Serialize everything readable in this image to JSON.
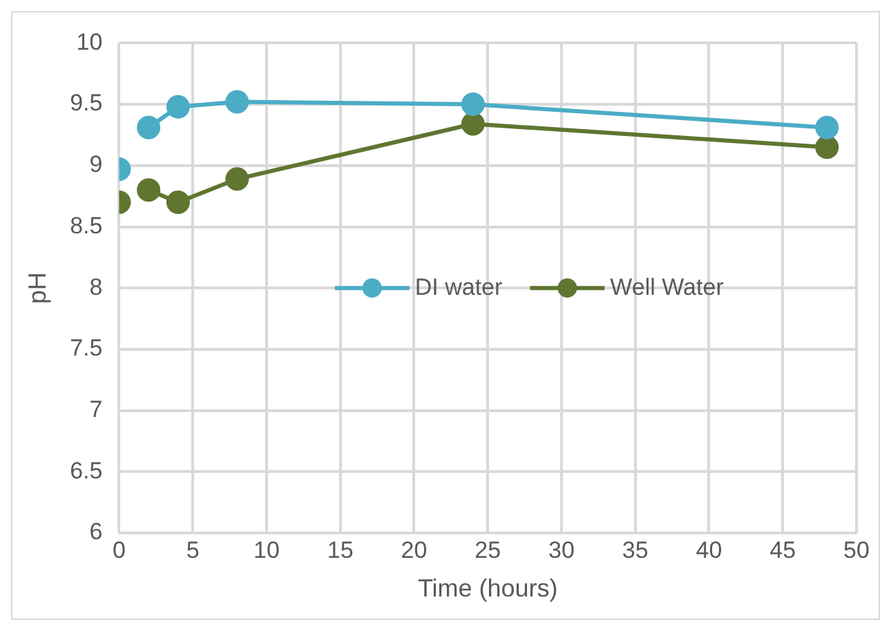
{
  "chart_data": {
    "type": "line",
    "xlabel": "Time (hours)",
    "ylabel": "pH",
    "x": [
      0,
      1,
      2,
      4,
      8,
      24,
      48
    ],
    "series": [
      {
        "name": "DI water",
        "color": "#4bacc6",
        "values": [
          8.97,
          null,
          9.31,
          9.48,
          9.52,
          9.5,
          9.31
        ]
      },
      {
        "name": "Well Water",
        "color": "#5f7530",
        "values": [
          8.7,
          null,
          8.8,
          8.7,
          8.89,
          9.34,
          9.15
        ]
      }
    ],
    "xlim": [
      0,
      50
    ],
    "xticks": [
      0,
      5,
      10,
      15,
      20,
      25,
      30,
      35,
      40,
      45,
      50
    ],
    "ylim": [
      6,
      10
    ],
    "yticks": [
      6,
      6.5,
      7,
      7.5,
      8,
      8.5,
      9,
      9.5,
      10
    ],
    "grid": true,
    "legend": "center",
    "marker": "circle",
    "line_style": "solid"
  }
}
